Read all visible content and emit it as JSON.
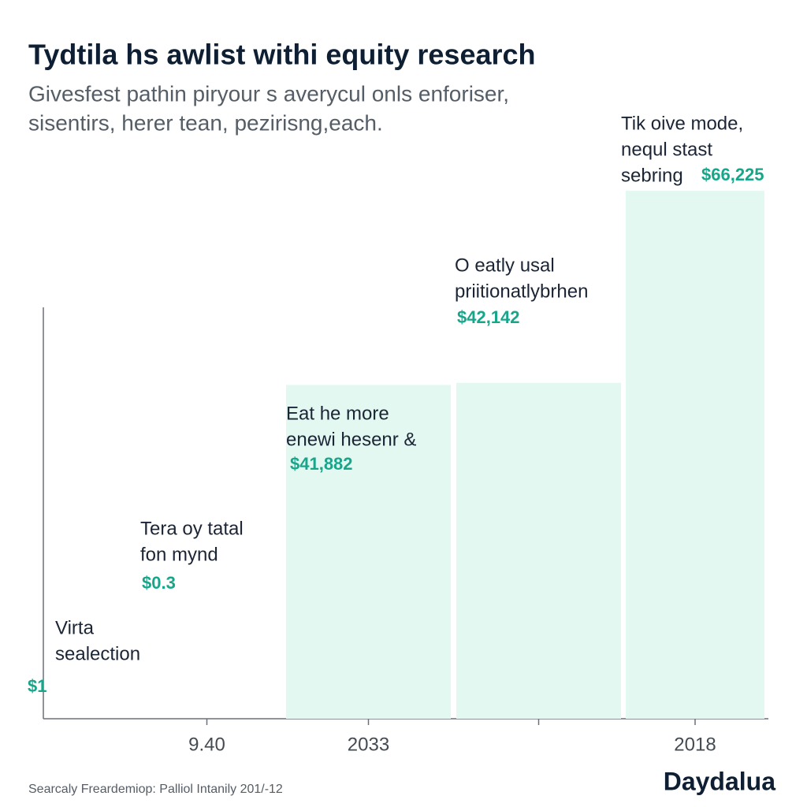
{
  "chart_data": {
    "type": "bar",
    "title": "Tydtila hs awlist withi equity research",
    "subtitle": [
      "Givesfest pathin piryour s averycul onls enforiser,",
      "sisentirs, herer tean, pezirisng,each."
    ],
    "categories": [
      null,
      "9.40",
      "2033",
      null,
      "2018"
    ],
    "values": [
      1,
      0.3,
      41882,
      42142,
      66225
    ],
    "value_labels": [
      "$1",
      "$0.3",
      "$41,882",
      "$42,142",
      "$66,225"
    ],
    "annotations": [
      [
        "Virta",
        "sealection"
      ],
      [
        "Tera oy tatal",
        "fon mynd"
      ],
      [
        "Eat he more",
        "enewi hesenr &"
      ],
      [
        "O eatly usal",
        "priitionatlybrhen"
      ],
      [
        "Tik oive mode,",
        "nequl stast",
        "sebring"
      ]
    ],
    "color": "#e3f8f1",
    "label_color": "#18a68b",
    "ylim": [
      0,
      70000
    ],
    "source": "Searcaly Freardemiop: Palliol Intanily 201/-12",
    "brand": "Daydalua"
  }
}
